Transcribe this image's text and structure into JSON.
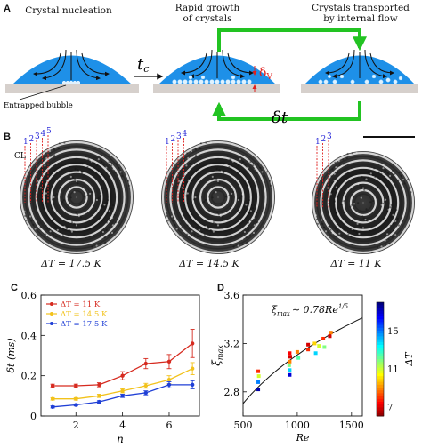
{
  "panelA": {
    "label": "A",
    "stage1_caption": "Crystal nucleation",
    "stage2_caption_line1": "Rapid growth",
    "stage2_caption_line2": "of crystals",
    "stage3_caption_line1": "Crystals transported",
    "stage3_caption_line2": "by internal flow",
    "tc_label": "t",
    "tc_sub": "c",
    "delta_label": "δ",
    "delta_sub": "V",
    "dt_label": "δt",
    "bubble_label": "Entrapped bubble",
    "colors": {
      "drop": "#1e90e8",
      "substrate": "#d6d0cc",
      "arrow_green": "#22c322",
      "delta_red": "#e0201e"
    }
  },
  "panelB": {
    "label": "B",
    "cl_label": "CL",
    "images": [
      {
        "ticks": [
          "1",
          "2",
          "3",
          "4",
          "5"
        ],
        "caption": "ΔT = 17.5 K"
      },
      {
        "ticks": [
          "1",
          "2",
          "3",
          "4"
        ],
        "caption": "ΔT = 14.5 K"
      },
      {
        "ticks": [
          "1",
          "2",
          "3"
        ],
        "caption": "ΔT = 11 K"
      }
    ]
  },
  "panelC": {
    "label": "C",
    "ylabel": "δt (ms)",
    "xlabel": "n",
    "chart_data": {
      "type": "line",
      "x": [
        1,
        2,
        3,
        4,
        5,
        6,
        7
      ],
      "xlim": [
        0.5,
        7.3
      ],
      "ylim": [
        0,
        0.6
      ],
      "xticks": [
        "2",
        "4",
        "6"
      ],
      "yticks": [
        "0",
        "0.2",
        "0.4",
        "0.6"
      ],
      "legend_position": "top-left",
      "series": [
        {
          "name": "ΔT = 11 K",
          "color": "#d62a1f",
          "values": [
            0.15,
            0.15,
            0.155,
            0.2,
            0.26,
            0.27,
            0.36
          ],
          "err": [
            0.008,
            0.008,
            0.01,
            0.02,
            0.025,
            0.035,
            0.07
          ]
        },
        {
          "name": "ΔT = 14.5 K",
          "color": "#f2c21b",
          "values": [
            0.085,
            0.085,
            0.1,
            0.125,
            0.15,
            0.18,
            0.235
          ],
          "err": [
            0.006,
            0.006,
            0.008,
            0.01,
            0.012,
            0.02,
            0.03
          ]
        },
        {
          "name": "ΔT = 17.5 K",
          "color": "#1f3fd6",
          "values": [
            0.045,
            0.055,
            0.07,
            0.1,
            0.115,
            0.155,
            0.155
          ],
          "err": [
            0.005,
            0.005,
            0.006,
            0.008,
            0.01,
            0.015,
            0.02
          ]
        }
      ]
    }
  },
  "panelD": {
    "label": "D",
    "ylabel": "ξ",
    "ylabel_sub": "max",
    "xlabel": "Re",
    "fit_label_main": "ξ",
    "fit_label_sub": "max",
    "fit_label_rhs": "∼ 0.78Re",
    "fit_exponent": "1/5",
    "colorbar_label": "ΔT",
    "colorbar_ticks": [
      "15",
      "11",
      "7"
    ],
    "chart_data": {
      "type": "scatter",
      "xlim": [
        500,
        1600
      ],
      "ylim": [
        2.6,
        3.6
      ],
      "xticks": [
        "500",
        "1000",
        "1500"
      ],
      "yticks": [
        "2.8",
        "3.2",
        "3.6"
      ],
      "fit": {
        "coef": 0.78,
        "exponent": 0.2
      },
      "colorbar_range": [
        6,
        18
      ],
      "points": [
        {
          "x": 640,
          "y": 2.82,
          "c": 17.5
        },
        {
          "x": 640,
          "y": 2.88,
          "c": 15
        },
        {
          "x": 645,
          "y": 2.93,
          "c": 11
        },
        {
          "x": 640,
          "y": 2.97,
          "c": 8
        },
        {
          "x": 930,
          "y": 2.94,
          "c": 17
        },
        {
          "x": 930,
          "y": 2.98,
          "c": 14
        },
        {
          "x": 925,
          "y": 3.02,
          "c": 12
        },
        {
          "x": 930,
          "y": 3.05,
          "c": 9
        },
        {
          "x": 935,
          "y": 3.09,
          "c": 7
        },
        {
          "x": 930,
          "y": 3.12,
          "c": 7.5
        },
        {
          "x": 1000,
          "y": 3.13,
          "c": 9
        },
        {
          "x": 1010,
          "y": 3.08,
          "c": 12.5
        },
        {
          "x": 1100,
          "y": 3.15,
          "c": 8
        },
        {
          "x": 1100,
          "y": 3.19,
          "c": 7
        },
        {
          "x": 1160,
          "y": 3.2,
          "c": 10
        },
        {
          "x": 1170,
          "y": 3.12,
          "c": 14
        },
        {
          "x": 1200,
          "y": 3.18,
          "c": 11
        },
        {
          "x": 1240,
          "y": 3.24,
          "c": 8
        },
        {
          "x": 1250,
          "y": 3.17,
          "c": 12
        },
        {
          "x": 1300,
          "y": 3.26,
          "c": 7
        },
        {
          "x": 1310,
          "y": 3.29,
          "c": 9
        }
      ]
    }
  }
}
